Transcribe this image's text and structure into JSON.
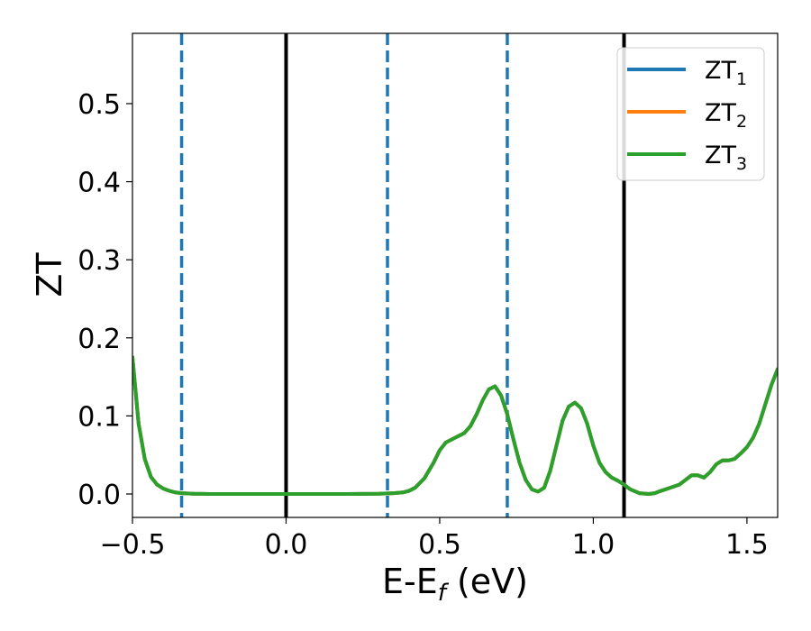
{
  "chart_data": {
    "type": "line",
    "title": "",
    "xlabel": "E-E",
    "xlabel_sub": "f",
    "xlabel_unit": " (eV)",
    "ylabel": "ZT",
    "xlim": [
      -0.5,
      1.6
    ],
    "ylim": [
      -0.03,
      0.59
    ],
    "x_ticks": [
      -0.5,
      0.0,
      0.5,
      1.0,
      1.5
    ],
    "x_tick_labels": [
      "−0.5",
      "0.0",
      "0.5",
      "1.0",
      "1.5"
    ],
    "y_ticks": [
      0.0,
      0.1,
      0.2,
      0.3,
      0.4,
      0.5
    ],
    "y_tick_labels": [
      "0.0",
      "0.1",
      "0.2",
      "0.3",
      "0.4",
      "0.5"
    ],
    "grid": false,
    "legend_position": "top-right",
    "vertical_lines": [
      {
        "x": -0.34,
        "style": "dashed",
        "color": "#1f77b4"
      },
      {
        "x": 0.0,
        "style": "solid",
        "color": "#000000"
      },
      {
        "x": 0.33,
        "style": "dashed",
        "color": "#1f77b4"
      },
      {
        "x": 0.72,
        "style": "dashed",
        "color": "#1f77b4"
      },
      {
        "x": 1.1,
        "style": "solid",
        "color": "#000000"
      }
    ],
    "series": [
      {
        "name": "ZT",
        "name_sub": "1",
        "color": "#1f77b4",
        "x": [
          -0.5,
          -0.48,
          -0.46,
          -0.44,
          -0.42,
          -0.4,
          -0.38,
          -0.36,
          -0.34,
          -0.3,
          -0.25,
          -0.2,
          -0.1,
          0.0,
          0.1,
          0.2,
          0.3,
          0.35,
          0.38,
          0.4,
          0.42,
          0.45,
          0.48,
          0.5,
          0.52,
          0.55,
          0.58,
          0.6,
          0.62,
          0.64,
          0.66,
          0.68,
          0.7,
          0.72,
          0.74,
          0.76,
          0.78,
          0.8,
          0.82,
          0.84,
          0.86,
          0.88,
          0.9,
          0.92,
          0.94,
          0.96,
          0.98,
          1.0,
          1.02,
          1.04,
          1.06,
          1.08,
          1.1,
          1.12,
          1.15,
          1.18,
          1.2,
          1.22,
          1.25,
          1.28,
          1.3,
          1.32,
          1.34,
          1.36,
          1.38,
          1.4,
          1.42,
          1.44,
          1.46,
          1.48,
          1.5,
          1.52,
          1.54,
          1.56,
          1.58,
          1.6
        ],
        "y": [
          0.175,
          0.09,
          0.045,
          0.022,
          0.012,
          0.007,
          0.004,
          0.002,
          0.001,
          0.0003,
          0.0,
          0.0,
          0.0,
          0.0,
          0.0,
          0.0,
          0.0003,
          0.001,
          0.002,
          0.004,
          0.008,
          0.02,
          0.04,
          0.056,
          0.066,
          0.072,
          0.078,
          0.087,
          0.102,
          0.12,
          0.134,
          0.138,
          0.126,
          0.102,
          0.07,
          0.04,
          0.018,
          0.006,
          0.003,
          0.008,
          0.03,
          0.062,
          0.094,
          0.112,
          0.117,
          0.11,
          0.09,
          0.062,
          0.04,
          0.028,
          0.021,
          0.017,
          0.012,
          0.006,
          0.001,
          0.0,
          0.001,
          0.004,
          0.008,
          0.012,
          0.018,
          0.024,
          0.024,
          0.021,
          0.028,
          0.038,
          0.043,
          0.043,
          0.045,
          0.052,
          0.06,
          0.072,
          0.09,
          0.115,
          0.14,
          0.16
        ]
      },
      {
        "name": "ZT",
        "name_sub": "2",
        "color": "#ff7f0e",
        "x": [
          -0.5,
          -0.48,
          -0.46,
          -0.44,
          -0.42,
          -0.4,
          -0.38,
          -0.36,
          -0.34,
          -0.3,
          -0.25,
          -0.2,
          -0.1,
          0.0,
          0.1,
          0.2,
          0.3,
          0.35,
          0.38,
          0.4,
          0.42,
          0.45,
          0.48,
          0.5,
          0.52,
          0.55,
          0.58,
          0.6,
          0.62,
          0.64,
          0.66,
          0.68,
          0.7,
          0.72,
          0.74,
          0.76,
          0.78,
          0.8,
          0.82,
          0.84,
          0.86,
          0.88,
          0.9,
          0.92,
          0.94,
          0.96,
          0.98,
          1.0,
          1.02,
          1.04,
          1.06,
          1.08,
          1.1,
          1.12,
          1.15,
          1.18,
          1.2,
          1.22,
          1.25,
          1.28,
          1.3,
          1.32,
          1.34,
          1.36,
          1.38,
          1.4,
          1.42,
          1.44,
          1.46,
          1.48,
          1.5,
          1.52,
          1.54,
          1.56,
          1.58,
          1.6
        ],
        "y": [
          0.175,
          0.09,
          0.045,
          0.022,
          0.012,
          0.007,
          0.004,
          0.002,
          0.001,
          0.0003,
          0.0,
          0.0,
          0.0,
          0.0,
          0.0,
          0.0,
          0.0003,
          0.001,
          0.002,
          0.004,
          0.008,
          0.02,
          0.04,
          0.056,
          0.066,
          0.072,
          0.078,
          0.087,
          0.102,
          0.12,
          0.134,
          0.138,
          0.126,
          0.102,
          0.07,
          0.04,
          0.018,
          0.006,
          0.003,
          0.008,
          0.03,
          0.062,
          0.094,
          0.112,
          0.117,
          0.11,
          0.09,
          0.062,
          0.04,
          0.028,
          0.021,
          0.017,
          0.012,
          0.006,
          0.001,
          0.0,
          0.001,
          0.004,
          0.008,
          0.012,
          0.018,
          0.024,
          0.024,
          0.021,
          0.028,
          0.038,
          0.043,
          0.043,
          0.045,
          0.052,
          0.06,
          0.072,
          0.09,
          0.115,
          0.14,
          0.16
        ]
      },
      {
        "name": "ZT",
        "name_sub": "3",
        "color": "#2ca02c",
        "x": [
          -0.5,
          -0.48,
          -0.46,
          -0.44,
          -0.42,
          -0.4,
          -0.38,
          -0.36,
          -0.34,
          -0.3,
          -0.25,
          -0.2,
          -0.1,
          0.0,
          0.1,
          0.2,
          0.3,
          0.35,
          0.38,
          0.4,
          0.42,
          0.45,
          0.48,
          0.5,
          0.52,
          0.55,
          0.58,
          0.6,
          0.62,
          0.64,
          0.66,
          0.68,
          0.7,
          0.72,
          0.74,
          0.76,
          0.78,
          0.8,
          0.82,
          0.84,
          0.86,
          0.88,
          0.9,
          0.92,
          0.94,
          0.96,
          0.98,
          1.0,
          1.02,
          1.04,
          1.06,
          1.08,
          1.1,
          1.12,
          1.15,
          1.18,
          1.2,
          1.22,
          1.25,
          1.28,
          1.3,
          1.32,
          1.34,
          1.36,
          1.38,
          1.4,
          1.42,
          1.44,
          1.46,
          1.48,
          1.5,
          1.52,
          1.54,
          1.56,
          1.58,
          1.6
        ],
        "y": [
          0.175,
          0.09,
          0.045,
          0.022,
          0.012,
          0.007,
          0.004,
          0.002,
          0.001,
          0.0003,
          0.0,
          0.0,
          0.0,
          0.0,
          0.0,
          0.0,
          0.0003,
          0.001,
          0.002,
          0.004,
          0.008,
          0.02,
          0.04,
          0.056,
          0.066,
          0.072,
          0.078,
          0.087,
          0.102,
          0.12,
          0.134,
          0.138,
          0.126,
          0.102,
          0.07,
          0.04,
          0.018,
          0.006,
          0.003,
          0.008,
          0.03,
          0.062,
          0.094,
          0.112,
          0.117,
          0.11,
          0.09,
          0.062,
          0.04,
          0.028,
          0.021,
          0.017,
          0.012,
          0.006,
          0.001,
          0.0,
          0.001,
          0.004,
          0.008,
          0.012,
          0.018,
          0.024,
          0.024,
          0.021,
          0.028,
          0.038,
          0.043,
          0.043,
          0.045,
          0.052,
          0.06,
          0.072,
          0.09,
          0.115,
          0.14,
          0.16
        ]
      }
    ]
  }
}
